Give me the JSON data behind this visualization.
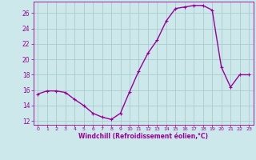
{
  "x": [
    0,
    1,
    2,
    3,
    4,
    5,
    6,
    7,
    8,
    9,
    10,
    11,
    12,
    13,
    14,
    15,
    16,
    17,
    18,
    19,
    20,
    21,
    22,
    23
  ],
  "y": [
    15.5,
    15.9,
    15.9,
    15.7,
    14.8,
    14.0,
    13.0,
    12.5,
    12.2,
    13.0,
    15.8,
    18.5,
    20.8,
    22.5,
    25.0,
    26.6,
    26.8,
    27.0,
    27.0,
    26.4,
    19.0,
    16.4,
    18.0,
    18.0
  ],
  "line_color": "#990099",
  "marker": "+",
  "marker_size": 3,
  "bg_color": "#cce8ea",
  "grid_color": "#aacccc",
  "xlabel": "Windchill (Refroidissement éolien,°C)",
  "xlabel_color": "#990099",
  "tick_color": "#990099",
  "ylim": [
    11.5,
    27.5
  ],
  "yticks": [
    12,
    14,
    16,
    18,
    20,
    22,
    24,
    26
  ],
  "xlim": [
    -0.5,
    23.5
  ],
  "xticks": [
    0,
    1,
    2,
    3,
    4,
    5,
    6,
    7,
    8,
    9,
    10,
    11,
    12,
    13,
    14,
    15,
    16,
    17,
    18,
    19,
    20,
    21,
    22,
    23
  ],
  "xtick_labels": [
    "0",
    "1",
    "2",
    "3",
    "4",
    "5",
    "6",
    "7",
    "8",
    "9",
    "10",
    "11",
    "12",
    "13",
    "14",
    "15",
    "16",
    "17",
    "18",
    "19",
    "20",
    "21",
    "22",
    "23"
  ],
  "line_width": 1.0
}
